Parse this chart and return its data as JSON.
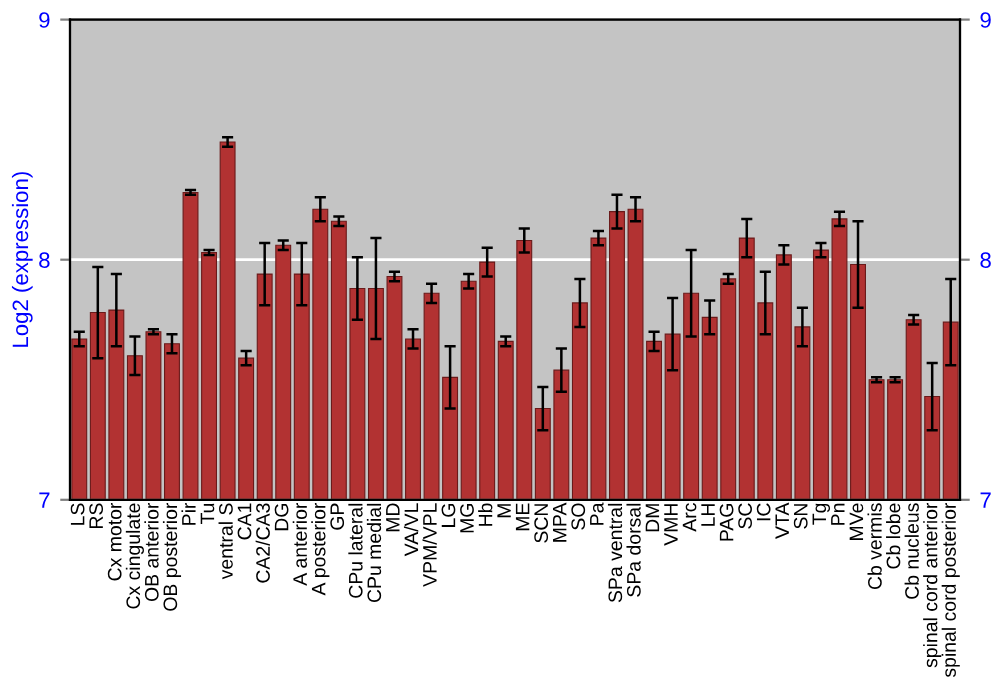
{
  "chart_data": {
    "type": "bar",
    "ylabel": "Log2 (expression)",
    "categories": [
      "LS",
      "RS",
      "Cx motor",
      "Cx cingulate",
      "OB anterior",
      "OB posterior",
      "Pir",
      "Tu",
      "ventral S",
      "CA1",
      "CA2/CA3",
      "DG",
      "A anterior",
      "A posterior",
      "GP",
      "CPu lateral",
      "CPu medial",
      "MD",
      "VA/VL",
      "VPM/VPL",
      "LG",
      "MG",
      "Hb",
      "M",
      "ME",
      "SCN",
      "MPA",
      "SO",
      "Pa",
      "SPa ventral",
      "SPa dorsal",
      "DM",
      "VMH",
      "Arc",
      "LH",
      "PAG",
      "SC",
      "IC",
      "VTA",
      "SN",
      "Tg",
      "Pn",
      "MVe",
      "Cb vermis",
      "Cb lobe",
      "Cb nucleus",
      "spinal cord anterior",
      "spinal cord posterior"
    ],
    "values": [
      7.67,
      7.78,
      7.79,
      7.6,
      7.7,
      7.65,
      8.28,
      8.03,
      8.49,
      7.59,
      7.94,
      8.06,
      7.94,
      8.21,
      8.16,
      7.88,
      7.88,
      7.93,
      7.67,
      7.86,
      7.51,
      7.91,
      7.99,
      7.66,
      8.08,
      7.38,
      7.54,
      7.82,
      8.09,
      8.2,
      8.21,
      7.66,
      7.69,
      7.86,
      7.76,
      7.92,
      8.09,
      7.82,
      8.02,
      7.72,
      8.04,
      8.17,
      7.98,
      7.5,
      7.5,
      7.75,
      7.43,
      7.74
    ],
    "errors": [
      0.03,
      0.19,
      0.15,
      0.08,
      0.01,
      0.04,
      0.01,
      0.01,
      0.02,
      0.03,
      0.13,
      0.02,
      0.13,
      0.05,
      0.02,
      0.13,
      0.21,
      0.02,
      0.04,
      0.04,
      0.13,
      0.03,
      0.06,
      0.02,
      0.05,
      0.09,
      0.09,
      0.1,
      0.03,
      0.07,
      0.05,
      0.04,
      0.15,
      0.18,
      0.07,
      0.02,
      0.08,
      0.13,
      0.04,
      0.08,
      0.03,
      0.03,
      0.18,
      0.01,
      0.01,
      0.02,
      0.14,
      0.18
    ],
    "color": "#b23232",
    "ylim": [
      7,
      9
    ],
    "yticks": [
      7,
      8,
      9
    ],
    "y2lim": [
      7,
      9
    ],
    "y2ticks": [
      7,
      8,
      9
    ],
    "grid": "y"
  }
}
